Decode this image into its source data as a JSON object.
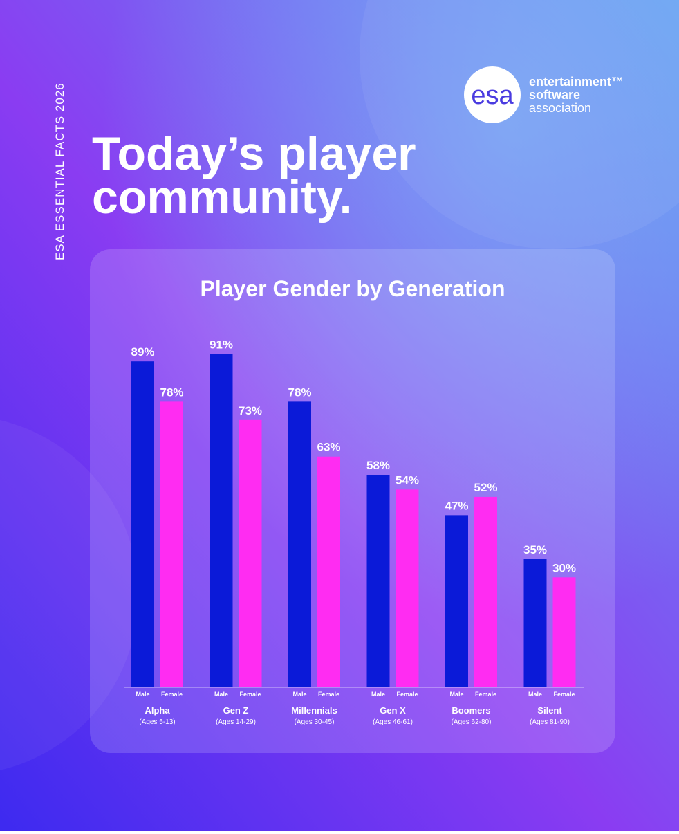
{
  "page": {
    "side_label": "ESA ESSENTIAL FACTS 2026",
    "headline": [
      "Today’s player",
      "community."
    ],
    "logo": {
      "mark": "esa",
      "lines": [
        "entertainment™",
        "software",
        "association"
      ]
    }
  },
  "chart_data": {
    "type": "bar",
    "title": "Player Gender by Generation",
    "categories": [
      "Alpha",
      "Gen Z",
      "Millennials",
      "Gen X",
      "Boomers",
      "Silent"
    ],
    "category_subtitles": [
      "(Ages 5-13)",
      "(Ages 14-29)",
      "(Ages 30-45)",
      "(Ages 46-61)",
      "(Ages 62-80)",
      "(Ages 81-90)"
    ],
    "series": [
      {
        "name": "Male",
        "color": "#0b1ad8",
        "values": [
          89,
          91,
          78,
          58,
          47,
          35
        ],
        "value_labels": [
          "89%",
          "91%",
          "78%",
          "58%",
          "47%",
          "35%"
        ]
      },
      {
        "name": "Female",
        "color": "#ff2cf2",
        "values": [
          78,
          73,
          63,
          54,
          52,
          30
        ],
        "value_labels": [
          "78%",
          "73%",
          "63%",
          "54%",
          "52%",
          "30%"
        ]
      }
    ]
  }
}
